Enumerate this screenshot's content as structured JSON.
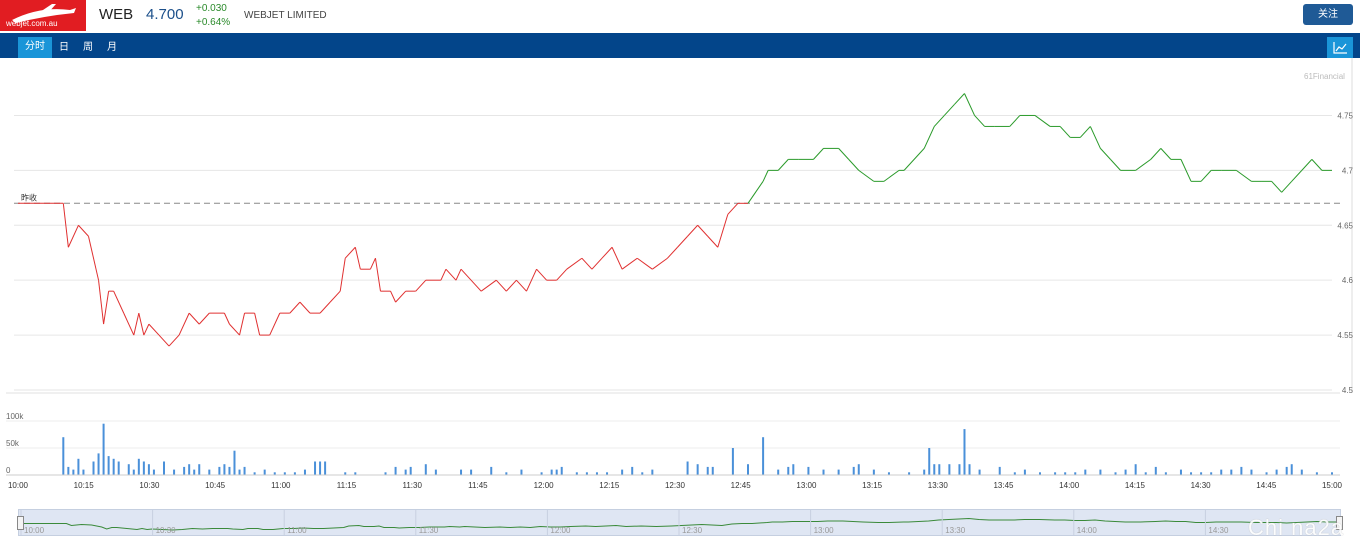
{
  "header": {
    "logo_text": "webjet.com.au",
    "ticker": "WEB",
    "price": "4.700",
    "change": "+0.030",
    "change_pct": "+0.64%",
    "company": "WEBJET LIMITED",
    "follow_label": "关注"
  },
  "tabs": [
    {
      "label": "分时",
      "active": true
    },
    {
      "label": "日",
      "active": false
    },
    {
      "label": "周",
      "active": false
    },
    {
      "label": "月",
      "active": false
    }
  ],
  "watermark": "61Financial",
  "prev_close_label": "昨收",
  "colors": {
    "up": "#2a9a2a",
    "down": "#e03030",
    "volume": "#4a90d9",
    "accent": "#03458a"
  },
  "chart_data": {
    "type": "line",
    "prev_close": 4.67,
    "price_ticks": [
      "4.75",
      "4.7",
      "4.65",
      "4.6",
      "4.55",
      "4.5"
    ],
    "volume_ticks": [
      "100k",
      "50k",
      "0"
    ],
    "time_ticks": [
      "10:00",
      "10:15",
      "10:30",
      "10:45",
      "11:00",
      "11:15",
      "11:30",
      "11:45",
      "12:00",
      "12:15",
      "12:30",
      "12:45",
      "13:00",
      "13:15",
      "13:30",
      "13:45",
      "14:00",
      "14:15",
      "14:30",
      "14:45",
      "15:00"
    ],
    "ylim": [
      4.5,
      4.77
    ],
    "price_series": [
      [
        0,
        4.67
      ],
      [
        9,
        4.67
      ],
      [
        10,
        4.63
      ],
      [
        12,
        4.65
      ],
      [
        14,
        4.64
      ],
      [
        16,
        4.6
      ],
      [
        17,
        4.56
      ],
      [
        18,
        4.59
      ],
      [
        19,
        4.59
      ],
      [
        21,
        4.57
      ],
      [
        23,
        4.55
      ],
      [
        24,
        4.57
      ],
      [
        25,
        4.55
      ],
      [
        26,
        4.56
      ],
      [
        28,
        4.55
      ],
      [
        30,
        4.54
      ],
      [
        32,
        4.55
      ],
      [
        34,
        4.57
      ],
      [
        36,
        4.56
      ],
      [
        38,
        4.57
      ],
      [
        41,
        4.57
      ],
      [
        42,
        4.56
      ],
      [
        44,
        4.55
      ],
      [
        45,
        4.57
      ],
      [
        47,
        4.57
      ],
      [
        48,
        4.55
      ],
      [
        50,
        4.55
      ],
      [
        52,
        4.57
      ],
      [
        54,
        4.57
      ],
      [
        56,
        4.58
      ],
      [
        58,
        4.57
      ],
      [
        60,
        4.57
      ],
      [
        62,
        4.58
      ],
      [
        64,
        4.59
      ],
      [
        65,
        4.62
      ],
      [
        67,
        4.63
      ],
      [
        68,
        4.61
      ],
      [
        70,
        4.61
      ],
      [
        71,
        4.62
      ],
      [
        72,
        4.59
      ],
      [
        74,
        4.59
      ],
      [
        75,
        4.58
      ],
      [
        77,
        4.59
      ],
      [
        79,
        4.59
      ],
      [
        81,
        4.6
      ],
      [
        84,
        4.6
      ],
      [
        85,
        4.61
      ],
      [
        87,
        4.6
      ],
      [
        88,
        4.61
      ],
      [
        90,
        4.6
      ],
      [
        92,
        4.59
      ],
      [
        95,
        4.6
      ],
      [
        97,
        4.59
      ],
      [
        99,
        4.6
      ],
      [
        101,
        4.59
      ],
      [
        103,
        4.61
      ],
      [
        105,
        4.6
      ],
      [
        107,
        4.6
      ],
      [
        109,
        4.61
      ],
      [
        112,
        4.62
      ],
      [
        114,
        4.61
      ],
      [
        116,
        4.62
      ],
      [
        118,
        4.63
      ],
      [
        120,
        4.61
      ],
      [
        123,
        4.62
      ],
      [
        126,
        4.61
      ],
      [
        129,
        4.62
      ],
      [
        131,
        4.63
      ],
      [
        133,
        4.64
      ],
      [
        135,
        4.65
      ],
      [
        137,
        4.64
      ],
      [
        139,
        4.63
      ],
      [
        141,
        4.66
      ],
      [
        143,
        4.67
      ],
      [
        145,
        4.67
      ],
      [
        148,
        4.69
      ],
      [
        149,
        4.7
      ],
      [
        151,
        4.7
      ],
      [
        153,
        4.71
      ],
      [
        155,
        4.71
      ],
      [
        158,
        4.71
      ],
      [
        160,
        4.72
      ],
      [
        163,
        4.72
      ],
      [
        165,
        4.71
      ],
      [
        167,
        4.7
      ],
      [
        170,
        4.69
      ],
      [
        172,
        4.69
      ],
      [
        175,
        4.7
      ],
      [
        176,
        4.7
      ],
      [
        180,
        4.72
      ],
      [
        182,
        4.74
      ],
      [
        184,
        4.75
      ],
      [
        186,
        4.76
      ],
      [
        188,
        4.77
      ],
      [
        190,
        4.75
      ],
      [
        192,
        4.74
      ],
      [
        194,
        4.74
      ],
      [
        197,
        4.74
      ],
      [
        199,
        4.75
      ],
      [
        202,
        4.75
      ],
      [
        205,
        4.74
      ],
      [
        207,
        4.74
      ],
      [
        209,
        4.73
      ],
      [
        211,
        4.73
      ],
      [
        213,
        4.74
      ],
      [
        215,
        4.72
      ],
      [
        217,
        4.71
      ],
      [
        219,
        4.7
      ],
      [
        222,
        4.7
      ],
      [
        225,
        4.71
      ],
      [
        227,
        4.72
      ],
      [
        229,
        4.71
      ],
      [
        231,
        4.71
      ],
      [
        233,
        4.69
      ],
      [
        235,
        4.69
      ],
      [
        237,
        4.7
      ],
      [
        239,
        4.7
      ],
      [
        242,
        4.7
      ],
      [
        245,
        4.69
      ],
      [
        247,
        4.69
      ],
      [
        249,
        4.69
      ],
      [
        251,
        4.68
      ],
      [
        253,
        4.69
      ],
      [
        255,
        4.7
      ],
      [
        257,
        4.71
      ],
      [
        259,
        4.7
      ],
      [
        261,
        4.7
      ]
    ],
    "volume_series": [
      [
        9,
        70
      ],
      [
        10,
        15
      ],
      [
        11,
        10
      ],
      [
        12,
        30
      ],
      [
        13,
        10
      ],
      [
        15,
        25
      ],
      [
        16,
        40
      ],
      [
        17,
        95
      ],
      [
        18,
        35
      ],
      [
        19,
        30
      ],
      [
        20,
        25
      ],
      [
        22,
        20
      ],
      [
        23,
        10
      ],
      [
        24,
        30
      ],
      [
        25,
        25
      ],
      [
        26,
        20
      ],
      [
        27,
        10
      ],
      [
        29,
        25
      ],
      [
        31,
        10
      ],
      [
        33,
        15
      ],
      [
        34,
        20
      ],
      [
        35,
        10
      ],
      [
        36,
        20
      ],
      [
        38,
        10
      ],
      [
        40,
        15
      ],
      [
        41,
        20
      ],
      [
        42,
        15
      ],
      [
        43,
        45
      ],
      [
        44,
        10
      ],
      [
        45,
        15
      ],
      [
        47,
        5
      ],
      [
        49,
        10
      ],
      [
        51,
        5
      ],
      [
        53,
        5
      ],
      [
        55,
        5
      ],
      [
        57,
        10
      ],
      [
        59,
        25
      ],
      [
        60,
        25
      ],
      [
        61,
        25
      ],
      [
        65,
        5
      ],
      [
        67,
        5
      ],
      [
        73,
        5
      ],
      [
        75,
        15
      ],
      [
        77,
        10
      ],
      [
        78,
        15
      ],
      [
        81,
        20
      ],
      [
        83,
        10
      ],
      [
        88,
        10
      ],
      [
        90,
        10
      ],
      [
        94,
        15
      ],
      [
        97,
        5
      ],
      [
        100,
        10
      ],
      [
        104,
        5
      ],
      [
        106,
        10
      ],
      [
        107,
        10
      ],
      [
        108,
        15
      ],
      [
        111,
        5
      ],
      [
        113,
        5
      ],
      [
        115,
        5
      ],
      [
        117,
        5
      ],
      [
        120,
        10
      ],
      [
        122,
        15
      ],
      [
        124,
        5
      ],
      [
        126,
        10
      ],
      [
        133,
        25
      ],
      [
        135,
        20
      ],
      [
        137,
        15
      ],
      [
        138,
        15
      ],
      [
        142,
        50
      ],
      [
        145,
        20
      ],
      [
        148,
        70
      ],
      [
        151,
        10
      ],
      [
        153,
        15
      ],
      [
        154,
        20
      ],
      [
        157,
        15
      ],
      [
        160,
        10
      ],
      [
        163,
        10
      ],
      [
        166,
        15
      ],
      [
        167,
        20
      ],
      [
        170,
        10
      ],
      [
        173,
        5
      ],
      [
        177,
        5
      ],
      [
        180,
        10
      ],
      [
        181,
        50
      ],
      [
        182,
        20
      ],
      [
        183,
        20
      ],
      [
        185,
        20
      ],
      [
        187,
        20
      ],
      [
        188,
        85
      ],
      [
        189,
        20
      ],
      [
        191,
        10
      ],
      [
        195,
        15
      ],
      [
        198,
        5
      ],
      [
        200,
        10
      ],
      [
        203,
        5
      ],
      [
        206,
        5
      ],
      [
        208,
        5
      ],
      [
        210,
        5
      ],
      [
        212,
        10
      ],
      [
        215,
        10
      ],
      [
        218,
        5
      ],
      [
        220,
        10
      ],
      [
        222,
        20
      ],
      [
        224,
        5
      ],
      [
        226,
        15
      ],
      [
        228,
        5
      ],
      [
        231,
        10
      ],
      [
        233,
        5
      ],
      [
        235,
        5
      ],
      [
        237,
        5
      ],
      [
        239,
        10
      ],
      [
        241,
        10
      ],
      [
        243,
        15
      ],
      [
        245,
        10
      ],
      [
        248,
        5
      ],
      [
        250,
        10
      ],
      [
        252,
        15
      ],
      [
        253,
        20
      ],
      [
        255,
        10
      ],
      [
        258,
        5
      ],
      [
        261,
        5
      ]
    ],
    "nav_ticks": [
      "10:00",
      "10:30",
      "11:00",
      "11:30",
      "12:00",
      "12:30",
      "13:00",
      "13:30",
      "14:00",
      "14:30"
    ],
    "overlay_text": "Chi na2a"
  }
}
